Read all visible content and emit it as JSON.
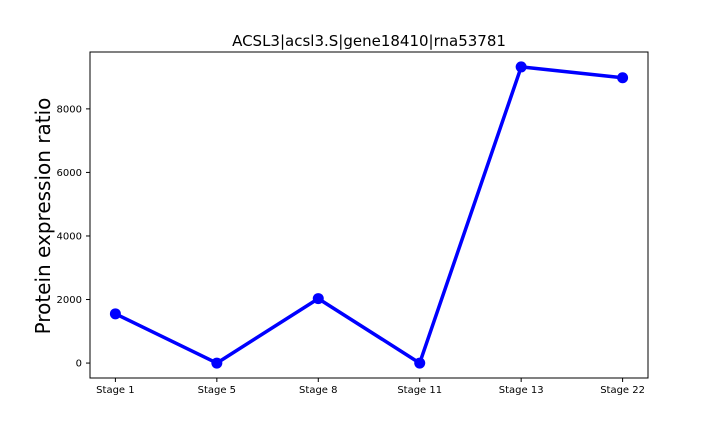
{
  "chart_data": {
    "type": "line",
    "title": "ACSL3|acsl3.S|gene18410|rna53781",
    "xlabel": "",
    "ylabel": "Protein expression ratio",
    "categories": [
      "Stage 1",
      "Stage 5",
      "Stage 8",
      "Stage 11",
      "Stage 13",
      "Stage 22"
    ],
    "series": [
      {
        "values": [
          1550,
          0,
          2030,
          0,
          9320,
          8980
        ],
        "color": "#0000ff"
      }
    ],
    "yticks": [
      0,
      2000,
      4000,
      6000,
      8000
    ],
    "ylim": [
      -470,
      9790
    ],
    "grid": false,
    "legend": "none"
  }
}
